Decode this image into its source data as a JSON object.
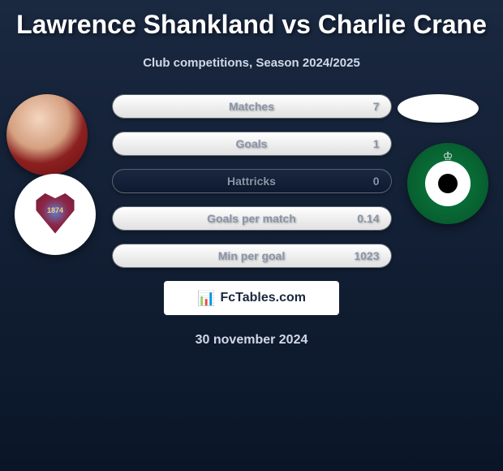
{
  "title": "Lawrence Shankland vs Charlie Crane",
  "subtitle": "Club competitions, Season 2024/2025",
  "stats": [
    {
      "label": "Matches",
      "value": "7",
      "fill_pct": 100
    },
    {
      "label": "Goals",
      "value": "1",
      "fill_pct": 100
    },
    {
      "label": "Hattricks",
      "value": "0",
      "fill_pct": 0
    },
    {
      "label": "Goals per match",
      "value": "0.14",
      "fill_pct": 100
    },
    {
      "label": "Min per goal",
      "value": "1023",
      "fill_pct": 100
    }
  ],
  "club_left_year": "1874",
  "footer_brand": "FcTables.com",
  "date": "30 november 2024",
  "colors": {
    "background_top": "#1a2840",
    "background_bottom": "#0a1628",
    "bar_fill": "#ffffff",
    "text_muted": "#8a95a8",
    "text_light": "#d0d8e8",
    "club_right_green": "#0a8040"
  }
}
